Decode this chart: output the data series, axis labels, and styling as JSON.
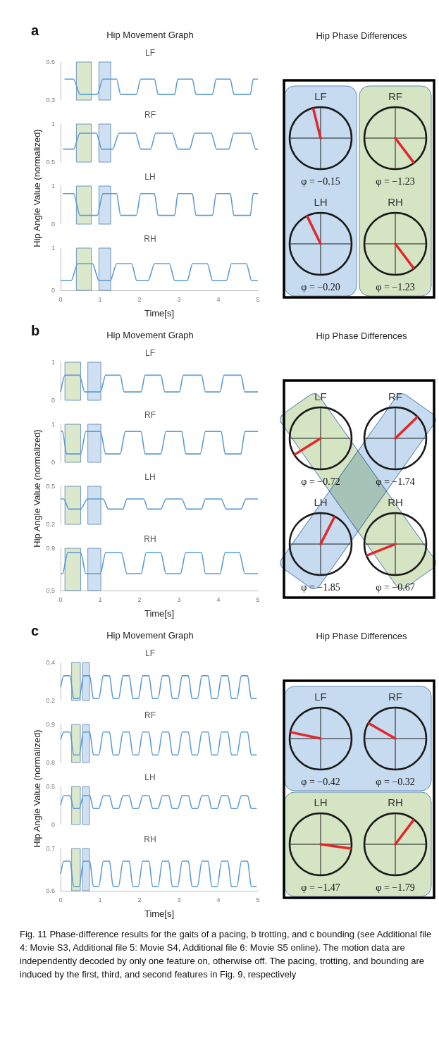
{
  "chart_data": [
    {
      "type": "line",
      "title": "Hip Movement Graph",
      "subtitle": "LF",
      "ylabel": "Hip Angle Value (normalized)",
      "annotations": [
        "a"
      ],
      "color": "#5b9bd5",
      "x": [
        0.1,
        0.33,
        0.49,
        0.93,
        1.07,
        1.42,
        1.52,
        1.92,
        2.03,
        2.38,
        2.47,
        2.89,
        2.97,
        3.34,
        3.43,
        3.85,
        3.94,
        4.3,
        4.39,
        4.81,
        4.88,
        5
      ],
      "values": [
        0.41,
        0.41,
        0.33,
        0.33,
        0.41,
        0.41,
        0.33,
        0.33,
        0.41,
        0.41,
        0.33,
        0.33,
        0.41,
        0.41,
        0.33,
        0.33,
        0.41,
        0.41,
        0.33,
        0.33,
        0.41,
        0.41
      ],
      "xlim": [
        0,
        5
      ],
      "ylim": [
        0.3,
        0.5
      ],
      "yticks": [
        0.3,
        0.5
      ],
      "tick_labels": "y",
      "bands": [
        {
          "axis": "x",
          "from": 0.4,
          "to": 0.78,
          "color": "#d5e4c3"
        },
        {
          "axis": "x",
          "from": 0.97,
          "to": 1.27,
          "color": "#c6dbef"
        }
      ]
    },
    {
      "type": "line",
      "subtitle": "RF",
      "color": "#5b9bd5",
      "x": [
        0.06,
        0.33,
        0.49,
        0.91,
        1.04,
        1.32,
        1.48,
        1.9,
        2.03,
        2.28,
        2.41,
        2.83,
        2.97,
        3.27,
        3.4,
        3.82,
        3.95,
        4.26,
        4.39,
        4.81,
        4.94,
        5
      ],
      "values": [
        0.67,
        0.67,
        0.88,
        0.88,
        0.67,
        0.67,
        0.88,
        0.88,
        0.67,
        0.67,
        0.88,
        0.88,
        0.67,
        0.67,
        0.88,
        0.88,
        0.67,
        0.67,
        0.88,
        0.88,
        0.67,
        0.67
      ],
      "xlim": [
        0,
        5
      ],
      "ylim": [
        0.5,
        1
      ],
      "yticks": [
        0.5,
        1
      ],
      "tick_labels": "y",
      "bands": [
        {
          "axis": "x",
          "from": 0.4,
          "to": 0.78,
          "color": "#d5e4c3"
        },
        {
          "axis": "x",
          "from": 0.97,
          "to": 1.27,
          "color": "#c6dbef"
        }
      ]
    },
    {
      "type": "line",
      "subtitle": "LH",
      "color": "#5b9bd5",
      "x": [
        0.06,
        0.33,
        0.49,
        0.93,
        1.07,
        1.42,
        1.52,
        1.92,
        2.03,
        2.38,
        2.47,
        2.89,
        2.97,
        3.34,
        3.43,
        3.85,
        3.94,
        4.3,
        4.39,
        4.81,
        4.88,
        5
      ],
      "values": [
        0.8,
        0.8,
        0.23,
        0.23,
        0.8,
        0.8,
        0.23,
        0.23,
        0.8,
        0.8,
        0.23,
        0.23,
        0.8,
        0.8,
        0.23,
        0.23,
        0.8,
        0.8,
        0.23,
        0.23,
        0.8,
        0.8
      ],
      "xlim": [
        0,
        5
      ],
      "ylim": [
        0,
        1
      ],
      "yticks": [
        0,
        1
      ],
      "tick_labels": "y",
      "bands": [
        {
          "axis": "x",
          "from": 0.4,
          "to": 0.78,
          "color": "#d5e4c3"
        },
        {
          "axis": "x",
          "from": 0.97,
          "to": 1.27,
          "color": "#c6dbef"
        }
      ]
    },
    {
      "type": "line",
      "subtitle": "RH",
      "xlabel": "Time[s]",
      "color": "#5b9bd5",
      "x": [
        0,
        0.27,
        0.43,
        0.81,
        0.97,
        1.26,
        1.42,
        1.8,
        1.93,
        2.22,
        2.38,
        2.76,
        2.89,
        3.21,
        3.34,
        3.72,
        3.85,
        4.2,
        4.33,
        4.71,
        4.84,
        5
      ],
      "values": [
        0.23,
        0.23,
        0.63,
        0.63,
        0.23,
        0.23,
        0.63,
        0.63,
        0.23,
        0.23,
        0.63,
        0.63,
        0.23,
        0.23,
        0.63,
        0.63,
        0.23,
        0.23,
        0.63,
        0.63,
        0.23,
        0.23
      ],
      "xlim": [
        0,
        5
      ],
      "xticks": [
        0,
        1,
        2,
        3,
        4,
        5
      ],
      "ylim": [
        0,
        1
      ],
      "yticks": [
        0,
        1
      ],
      "bands": [
        {
          "axis": "x",
          "from": 0.4,
          "to": 0.78,
          "color": "#d5e4c3"
        },
        {
          "axis": "x",
          "from": 0.97,
          "to": 1.27,
          "color": "#c6dbef"
        }
      ]
    },
    {
      "type": "other",
      "title": "Hip Phase Differences",
      "categories": [
        "LF",
        "RF",
        "LH",
        "RH"
      ],
      "value_labels": [
        "φ = −0.15",
        "φ = −1.23",
        "φ = −0.20",
        "φ = −1.23"
      ],
      "colors": [
        "#c6dbef",
        "#d5e4c3",
        "#c6dbef",
        "#d5e4c3"
      ]
    },
    {
      "type": "line",
      "title": "Hip Movement Graph",
      "subtitle": "LF",
      "ylabel": "Hip Angle Value (normalized)",
      "annotations": [
        "b"
      ],
      "color": "#5b9bd5",
      "x": [
        0,
        0.11,
        0.48,
        0.61,
        1.01,
        1.14,
        1.51,
        1.61,
        2.04,
        2.14,
        2.54,
        2.64,
        3.01,
        3.11,
        3.57,
        3.67,
        4.04,
        4.14,
        4.57,
        4.67,
        5
      ],
      "values": [
        0.22,
        0.66,
        0.66,
        0.22,
        0.22,
        0.66,
        0.66,
        0.22,
        0.22,
        0.66,
        0.66,
        0.22,
        0.22,
        0.66,
        0.66,
        0.22,
        0.22,
        0.66,
        0.66,
        0.22,
        0.22
      ],
      "xlim": [
        0,
        5
      ],
      "ylim": [
        0,
        1
      ],
      "yticks": [
        0,
        1
      ],
      "tick_labels": "y",
      "bands": [
        {
          "axis": "x",
          "from": 0.11,
          "to": 0.51,
          "color": "#d5e4c3"
        },
        {
          "axis": "x",
          "from": 0.69,
          "to": 1.02,
          "color": "#c6dbef"
        }
      ]
    },
    {
      "type": "line",
      "subtitle": "RF",
      "color": "#5b9bd5",
      "x": [
        0,
        0.05,
        0.15,
        0.51,
        0.64,
        1.01,
        1.14,
        1.51,
        1.64,
        2.04,
        2.14,
        2.54,
        2.67,
        3.07,
        3.17,
        3.54,
        3.67,
        4.07,
        4.17,
        4.57,
        4.67,
        5
      ],
      "values": [
        0.81,
        0.81,
        0.22,
        0.22,
        0.81,
        0.81,
        0.22,
        0.22,
        0.81,
        0.81,
        0.22,
        0.22,
        0.81,
        0.81,
        0.22,
        0.22,
        0.81,
        0.81,
        0.22,
        0.22,
        0.81,
        0.81
      ],
      "xlim": [
        0,
        5
      ],
      "ylim": [
        0,
        1
      ],
      "yticks": [
        0,
        1
      ],
      "tick_labels": "y",
      "bands": [
        {
          "axis": "x",
          "from": 0.11,
          "to": 0.51,
          "color": "#d5e4c3"
        },
        {
          "axis": "x",
          "from": 0.69,
          "to": 1.02,
          "color": "#c6dbef"
        }
      ]
    },
    {
      "type": "line",
      "subtitle": "LH",
      "color": "#5b9bd5",
      "x": [
        0,
        0.08,
        0.21,
        0.51,
        0.68,
        1.08,
        1.21,
        1.58,
        1.68,
        2.11,
        2.21,
        2.54,
        2.67,
        3.07,
        3.2,
        3.57,
        3.67,
        4.07,
        4.2,
        4.57,
        4.7,
        5
      ],
      "values": [
        0.4,
        0.4,
        0.32,
        0.32,
        0.4,
        0.4,
        0.32,
        0.32,
        0.4,
        0.4,
        0.32,
        0.32,
        0.4,
        0.4,
        0.32,
        0.32,
        0.4,
        0.4,
        0.32,
        0.32,
        0.4,
        0.4
      ],
      "xlim": [
        0,
        5
      ],
      "ylim": [
        0.2,
        0.5
      ],
      "yticks": [
        0.2,
        0.5
      ],
      "tick_labels": "y",
      "bands": [
        {
          "axis": "x",
          "from": 0.11,
          "to": 0.51,
          "color": "#d5e4c3"
        },
        {
          "axis": "x",
          "from": 0.69,
          "to": 1.02,
          "color": "#c6dbef"
        }
      ]
    },
    {
      "type": "line",
      "subtitle": "RH",
      "xlabel": "Time[s]",
      "color": "#5b9bd5",
      "x": [
        0,
        0.05,
        0.18,
        0.51,
        0.64,
        1.01,
        1.14,
        1.54,
        1.68,
        2.04,
        2.17,
        2.54,
        2.67,
        3.04,
        3.17,
        3.57,
        3.67,
        4.04,
        4.17,
        4.53,
        4.67,
        5
      ],
      "values": [
        0.66,
        0.66,
        0.86,
        0.86,
        0.66,
        0.66,
        0.86,
        0.86,
        0.66,
        0.66,
        0.86,
        0.86,
        0.66,
        0.66,
        0.86,
        0.86,
        0.66,
        0.66,
        0.86,
        0.86,
        0.66,
        0.66
      ],
      "xlim": [
        0,
        5
      ],
      "xticks": [
        0,
        1,
        2,
        3,
        4,
        5
      ],
      "ylim": [
        0.5,
        0.9
      ],
      "yticks": [
        0.5,
        0.9
      ],
      "bands": [
        {
          "axis": "x",
          "from": 0.11,
          "to": 0.51,
          "color": "#d5e4c3"
        },
        {
          "axis": "x",
          "from": 0.69,
          "to": 1.02,
          "color": "#c6dbef"
        }
      ]
    },
    {
      "type": "other",
      "title": "Hip Phase Differences",
      "categories": [
        "LF",
        "RF",
        "LH",
        "RH"
      ],
      "value_labels": [
        "φ = −0.72",
        "φ = −1.74",
        "φ = −1.85",
        "φ = −0.67"
      ],
      "colors": [
        "#d5e4c3",
        "#c6dbef",
        "#c6dbef",
        "#d5e4c3"
      ]
    },
    {
      "type": "line",
      "title": "Hip Movement Graph",
      "subtitle": "LF",
      "ylabel": "Hip Angle Value (normalized)",
      "annotations": [
        "c"
      ],
      "color": "#5b9bd5",
      "x": [
        0,
        0.08,
        0.24,
        0.33,
        0.47,
        0.58,
        0.74,
        0.83,
        0.97,
        1.08,
        1.24,
        1.33,
        1.47,
        1.58,
        1.74,
        1.83,
        1.97,
        2.08,
        2.24,
        2.33,
        2.47,
        2.58,
        2.74,
        2.83,
        2.97,
        3.08,
        3.24,
        3.33,
        3.47,
        3.58,
        3.74,
        3.83,
        3.97,
        4.08,
        4.24,
        4.33,
        4.47,
        4.58,
        4.74,
        4.83,
        4.97
      ],
      "values": [
        0.27,
        0.33,
        0.33,
        0.21,
        0.21,
        0.33,
        0.33,
        0.21,
        0.21,
        0.33,
        0.33,
        0.21,
        0.21,
        0.33,
        0.33,
        0.21,
        0.21,
        0.33,
        0.33,
        0.21,
        0.21,
        0.33,
        0.33,
        0.21,
        0.21,
        0.33,
        0.33,
        0.21,
        0.21,
        0.33,
        0.33,
        0.21,
        0.21,
        0.33,
        0.33,
        0.21,
        0.21,
        0.33,
        0.33,
        0.21,
        0.21
      ],
      "xlim": [
        0,
        5
      ],
      "ylim": [
        0.2,
        0.4
      ],
      "yticks": [
        0.2,
        0.4
      ],
      "tick_labels": "y",
      "bands": [
        {
          "axis": "x",
          "from": 0.28,
          "to": 0.5,
          "color": "#d5e4c3"
        },
        {
          "axis": "x",
          "from": 0.56,
          "to": 0.73,
          "color": "#c6dbef"
        }
      ]
    },
    {
      "type": "line",
      "subtitle": "RF",
      "color": "#5b9bd5",
      "x": [
        0,
        0.08,
        0.24,
        0.33,
        0.47,
        0.58,
        0.74,
        0.83,
        0.97,
        1.08,
        1.24,
        1.33,
        1.47,
        1.58,
        1.74,
        1.83,
        1.97,
        2.08,
        2.24,
        2.33,
        2.47,
        2.58,
        2.74,
        2.83,
        2.97,
        3.08,
        3.24,
        3.33,
        3.47,
        3.58,
        3.74,
        3.83,
        3.97,
        4.08,
        4.24,
        4.33,
        4.47,
        4.58,
        4.74,
        4.83,
        4.97
      ],
      "values": [
        0.86,
        0.88,
        0.88,
        0.82,
        0.82,
        0.88,
        0.88,
        0.82,
        0.82,
        0.88,
        0.88,
        0.82,
        0.82,
        0.88,
        0.88,
        0.82,
        0.82,
        0.88,
        0.88,
        0.82,
        0.82,
        0.88,
        0.88,
        0.82,
        0.82,
        0.88,
        0.88,
        0.82,
        0.82,
        0.88,
        0.88,
        0.82,
        0.82,
        0.88,
        0.88,
        0.82,
        0.82,
        0.88,
        0.88,
        0.82,
        0.82
      ],
      "xlim": [
        0,
        5
      ],
      "ylim": [
        0.8,
        0.9
      ],
      "yticks": [
        0.8,
        0.9
      ],
      "tick_labels": "y",
      "bands": [
        {
          "axis": "x",
          "from": 0.28,
          "to": 0.5,
          "color": "#d5e4c3"
        },
        {
          "axis": "x",
          "from": 0.56,
          "to": 0.73,
          "color": "#c6dbef"
        }
      ]
    },
    {
      "type": "line",
      "subtitle": "LH",
      "color": "#5b9bd5",
      "x": [
        0,
        0.08,
        0.24,
        0.33,
        0.47,
        0.58,
        0.74,
        0.83,
        0.97,
        1.08,
        1.24,
        1.33,
        1.47,
        1.58,
        1.74,
        1.83,
        1.97,
        2.08,
        2.24,
        2.33,
        2.47,
        2.58,
        2.74,
        2.83,
        2.97,
        3.08,
        3.24,
        3.33,
        3.47,
        3.58,
        3.74,
        3.83,
        3.97,
        4.08,
        4.24,
        4.33,
        4.47,
        4.58,
        4.74,
        4.83,
        4.97
      ],
      "values": [
        0.26,
        0.38,
        0.38,
        0.21,
        0.21,
        0.38,
        0.38,
        0.21,
        0.21,
        0.38,
        0.38,
        0.21,
        0.21,
        0.38,
        0.38,
        0.21,
        0.21,
        0.38,
        0.38,
        0.21,
        0.21,
        0.38,
        0.38,
        0.21,
        0.21,
        0.38,
        0.38,
        0.21,
        0.21,
        0.38,
        0.38,
        0.21,
        0.21,
        0.38,
        0.38,
        0.21,
        0.21,
        0.38,
        0.38,
        0.21,
        0.21
      ],
      "xlim": [
        0,
        5
      ],
      "ylim": [
        0,
        0.5
      ],
      "yticks": [
        0,
        0.5
      ],
      "tick_labels": "y",
      "bands": [
        {
          "axis": "x",
          "from": 0.28,
          "to": 0.5,
          "color": "#d5e4c3"
        },
        {
          "axis": "x",
          "from": 0.56,
          "to": 0.73,
          "color": "#c6dbef"
        }
      ]
    },
    {
      "type": "line",
      "subtitle": "RH",
      "xlabel": "Time[s]",
      "color": "#5b9bd5",
      "x": [
        0,
        0.08,
        0.24,
        0.33,
        0.47,
        0.58,
        0.74,
        0.83,
        0.97,
        1.08,
        1.24,
        1.33,
        1.47,
        1.58,
        1.74,
        1.83,
        1.97,
        2.08,
        2.24,
        2.33,
        2.47,
        2.58,
        2.74,
        2.83,
        2.97,
        3.08,
        3.24,
        3.33,
        3.47,
        3.58,
        3.74,
        3.83,
        3.97,
        4.08,
        4.24,
        4.33,
        4.47,
        4.58,
        4.74,
        4.83,
        4.97
      ],
      "values": [
        0.64,
        0.67,
        0.67,
        0.61,
        0.61,
        0.67,
        0.67,
        0.61,
        0.61,
        0.67,
        0.67,
        0.61,
        0.61,
        0.67,
        0.67,
        0.61,
        0.61,
        0.67,
        0.67,
        0.61,
        0.61,
        0.67,
        0.67,
        0.61,
        0.61,
        0.67,
        0.67,
        0.61,
        0.61,
        0.67,
        0.67,
        0.61,
        0.61,
        0.67,
        0.67,
        0.61,
        0.61,
        0.67,
        0.67,
        0.61,
        0.61
      ],
      "xlim": [
        0,
        5
      ],
      "xticks": [
        0,
        1,
        2,
        3,
        4,
        5
      ],
      "ylim": [
        0.6,
        0.7
      ],
      "yticks": [
        0.6,
        0.7
      ],
      "bands": [
        {
          "axis": "x",
          "from": 0.28,
          "to": 0.5,
          "color": "#d5e4c3"
        },
        {
          "axis": "x",
          "from": 0.56,
          "to": 0.73,
          "color": "#c6dbef"
        }
      ]
    },
    {
      "type": "other",
      "title": "Hip Phase Differences",
      "categories": [
        "LF",
        "RF",
        "LH",
        "RH"
      ],
      "value_labels": [
        "φ = −0.42",
        "φ = −0.32",
        "φ = −1.47",
        "φ = −1.79"
      ],
      "colors": [
        "#c6dbef",
        "#c6dbef",
        "#d5e4c3",
        "#d5e4c3"
      ],
      "annotations": [
        "Fig. 11  Phase-difference results for the gaits of a pacing, b trotting, and c bounding (see Additional file 4: Movie S3, Additional file 5: Movie S4, Additional file 6: Movie S5 online). The motion data are independently decoded by only one feature on, otherwise off. The pacing, trotting, and bounding are induced by the first, third, and second features in Fig. 9, respectively"
      ]
    }
  ]
}
